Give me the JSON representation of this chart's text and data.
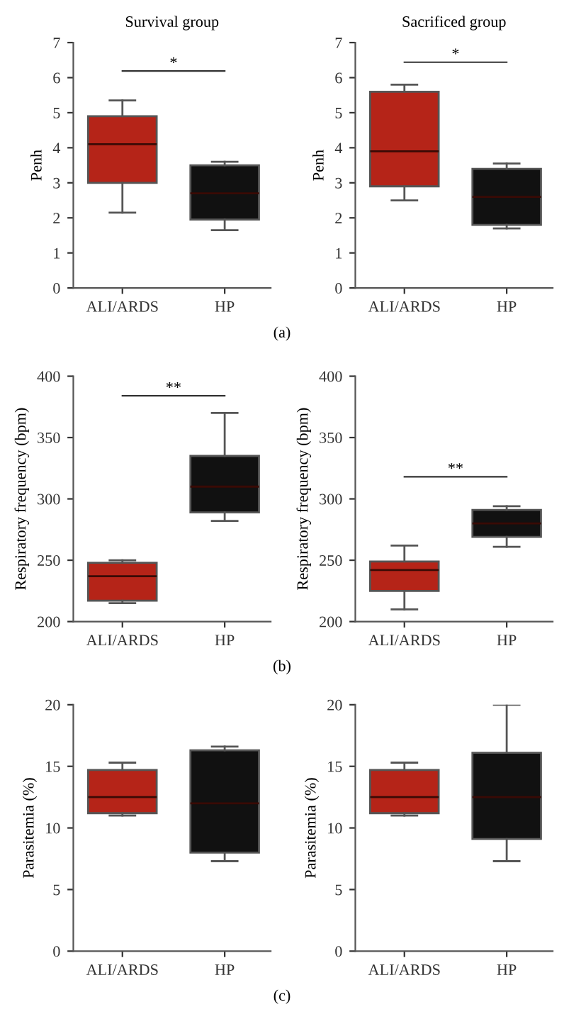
{
  "chart_data": [
    {
      "type": "box",
      "title": "Survival group",
      "ylabel": "Penh",
      "categories": [
        "ALI/ARDS",
        "HP"
      ],
      "colors": [
        "#b52418",
        "#111111"
      ],
      "ylim": [
        0,
        7
      ],
      "yticks": [
        0,
        1,
        2,
        3,
        4,
        5,
        6,
        7
      ],
      "boxes": [
        {
          "low": 2.15,
          "q1": 3.0,
          "median": 4.1,
          "q3": 4.9,
          "high": 5.35
        },
        {
          "low": 1.65,
          "q1": 1.95,
          "median": 2.7,
          "q3": 3.5,
          "high": 3.6
        }
      ],
      "annotations": [
        "*",
        "(a)"
      ]
    },
    {
      "type": "box",
      "title": "Sacrificed group",
      "ylabel": "Penh",
      "categories": [
        "ALI/ARDS",
        "HP"
      ],
      "colors": [
        "#b52418",
        "#111111"
      ],
      "ylim": [
        0,
        7
      ],
      "yticks": [
        0,
        1,
        2,
        3,
        4,
        5,
        6,
        7
      ],
      "boxes": [
        {
          "low": 2.5,
          "q1": 2.9,
          "median": 3.9,
          "q3": 5.6,
          "high": 5.8
        },
        {
          "low": 1.7,
          "q1": 1.8,
          "median": 2.6,
          "q3": 3.4,
          "high": 3.55
        }
      ],
      "annotations": [
        "*"
      ]
    },
    {
      "type": "box",
      "ylabel": "Respiratory frequency (bpm)",
      "categories": [
        "ALI/ARDS",
        "HP"
      ],
      "colors": [
        "#b52418",
        "#111111"
      ],
      "ylim": [
        200,
        400
      ],
      "yticks": [
        200,
        250,
        300,
        350,
        400
      ],
      "boxes": [
        {
          "low": 215,
          "q1": 217,
          "median": 237,
          "q3": 248,
          "high": 250
        },
        {
          "low": 282,
          "q1": 289,
          "median": 310,
          "q3": 335,
          "high": 370
        }
      ],
      "annotations": [
        "**",
        "(b)"
      ]
    },
    {
      "type": "box",
      "ylabel": "Respiratory frequency (bpm)",
      "categories": [
        "ALI/ARDS",
        "HP"
      ],
      "colors": [
        "#b52418",
        "#111111"
      ],
      "ylim": [
        200,
        400
      ],
      "yticks": [
        200,
        250,
        300,
        350,
        400
      ],
      "boxes": [
        {
          "low": 210,
          "q1": 225,
          "median": 242,
          "q3": 249,
          "high": 262
        },
        {
          "low": 261,
          "q1": 269,
          "median": 280,
          "q3": 291,
          "high": 294
        }
      ],
      "annotations": [
        "**"
      ]
    },
    {
      "type": "box",
      "ylabel": "Parasitemia (%)",
      "categories": [
        "ALI/ARDS",
        "HP"
      ],
      "colors": [
        "#b52418",
        "#111111"
      ],
      "ylim": [
        0,
        20
      ],
      "yticks": [
        0,
        5,
        10,
        15,
        20
      ],
      "boxes": [
        {
          "low": 11,
          "q1": 11.2,
          "median": 12.5,
          "q3": 14.7,
          "high": 15.3
        },
        {
          "low": 7.3,
          "q1": 8,
          "median": 12,
          "q3": 16.3,
          "high": 16.6
        }
      ],
      "annotations": [
        "(c)"
      ]
    },
    {
      "type": "box",
      "ylabel": "Parasitemia (%)",
      "categories": [
        "ALI/ARDS",
        "HP"
      ],
      "colors": [
        "#b52418",
        "#111111"
      ],
      "ylim": [
        0,
        20
      ],
      "yticks": [
        0,
        5,
        10,
        15,
        20
      ],
      "boxes": [
        {
          "low": 11,
          "q1": 11.2,
          "median": 12.5,
          "q3": 14.7,
          "high": 15.3
        },
        {
          "low": 7.3,
          "q1": 9.1,
          "median": 12.5,
          "q3": 16.1,
          "high": 20
        }
      ]
    }
  ]
}
